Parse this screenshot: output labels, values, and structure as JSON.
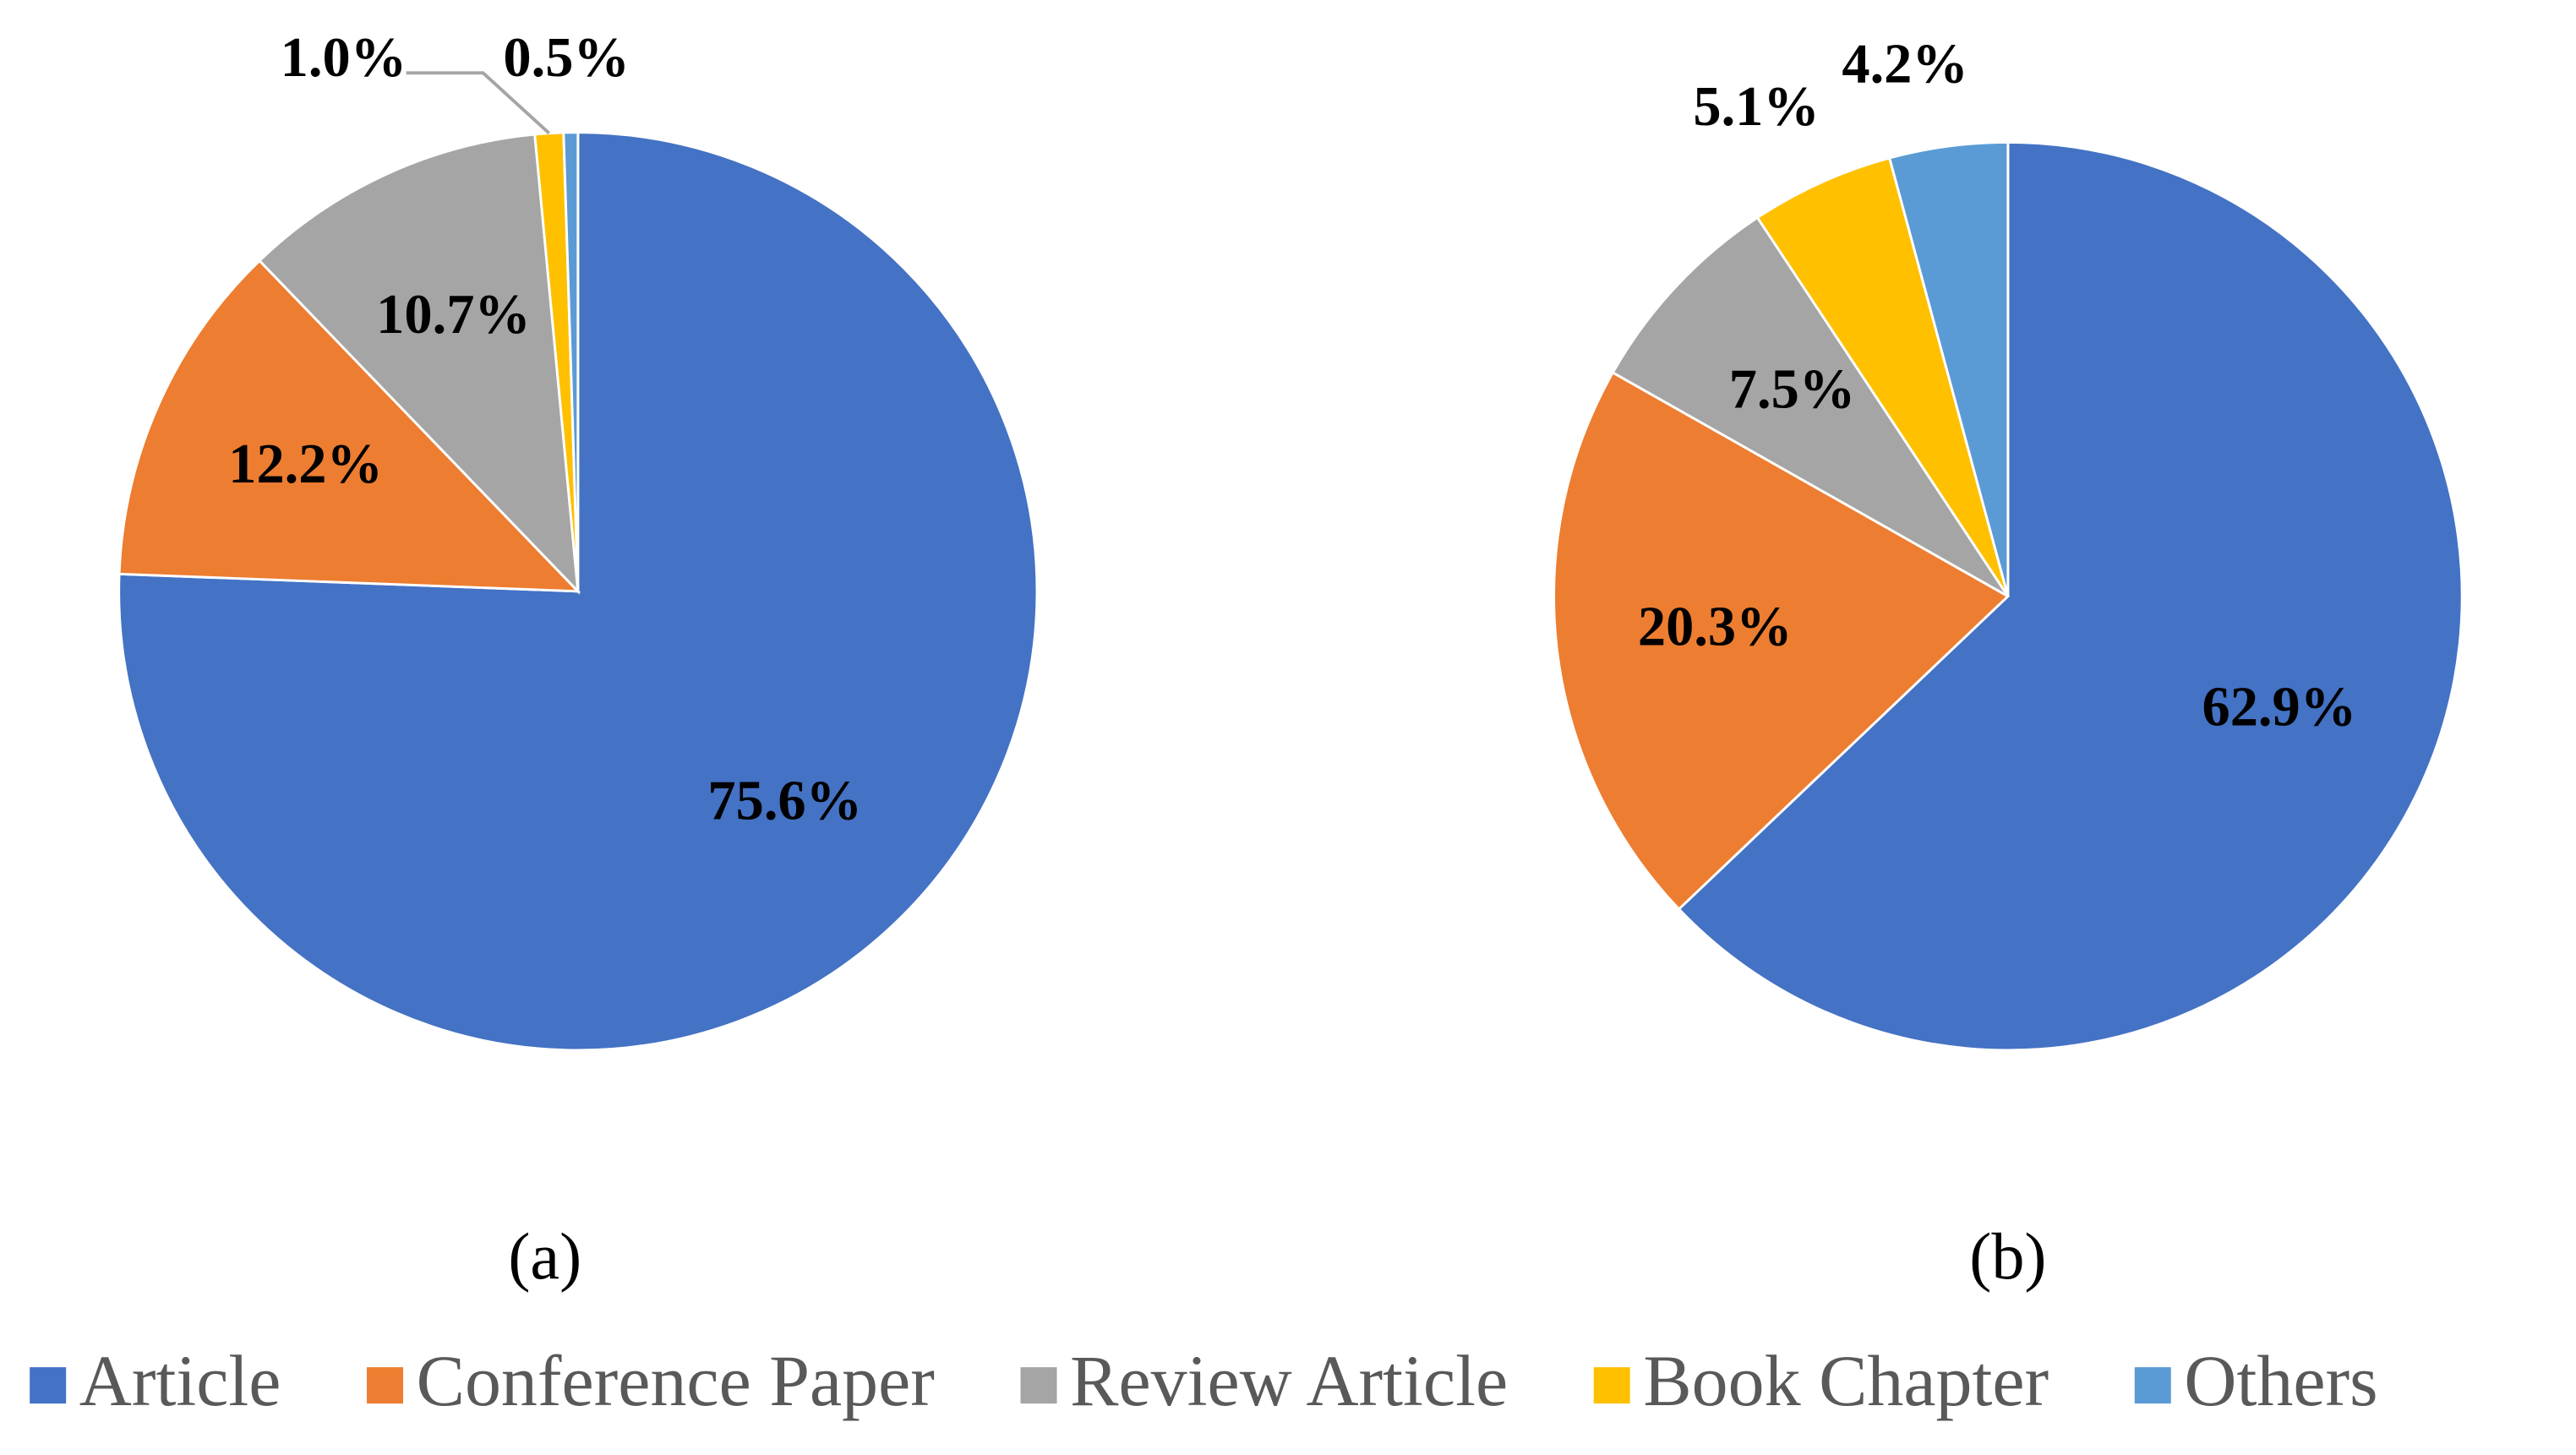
{
  "chart_data": [
    {
      "type": "pie",
      "caption": "(a)",
      "categories": [
        "Article",
        "Conference Paper",
        "Review Article",
        "Book Chapter",
        "Others"
      ],
      "values": [
        75.6,
        12.2,
        10.7,
        1.0,
        0.5
      ],
      "value_labels": [
        "75.6%",
        "12.2%",
        "10.7%",
        "1.0%",
        "0.5%"
      ],
      "colors": [
        "#4472c4",
        "#ed7d31",
        "#a5a5a5",
        "#ffc000",
        "#5b9bd5"
      ]
    },
    {
      "type": "pie",
      "caption": "(b)",
      "categories": [
        "Article",
        "Conference Paper",
        "Review Article",
        "Book Chapter",
        "Others"
      ],
      "values": [
        62.9,
        20.3,
        7.5,
        5.1,
        4.2
      ],
      "value_labels": [
        "62.9%",
        "20.3%",
        "7.5%",
        "5.1%",
        "4.2%"
      ],
      "colors": [
        "#4472c4",
        "#ed7d31",
        "#a5a5a5",
        "#ffc000",
        "#5b9bd5"
      ]
    }
  ]
}
